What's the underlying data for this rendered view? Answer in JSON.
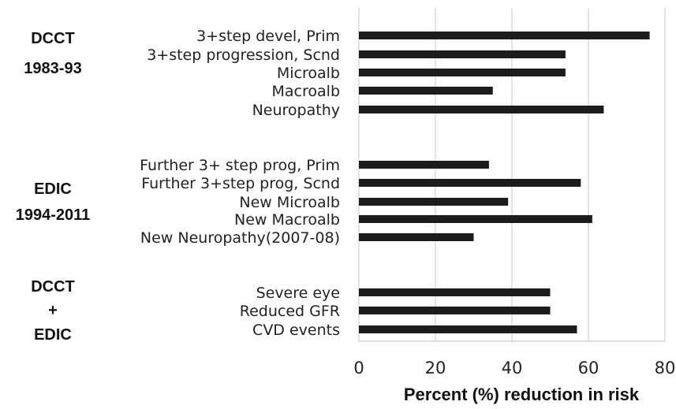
{
  "chart_data": {
    "type": "bar",
    "orientation": "horizontal",
    "xlabel": "Percent (%) reduction in risk",
    "xlim": [
      0,
      80
    ],
    "xticks": [
      "0",
      "20",
      "40",
      "60",
      "80"
    ],
    "grid": true,
    "groups": [
      {
        "label": [
          "DCCT",
          "1983-93"
        ],
        "categories": [
          "3+step devel, Prim",
          "3+step progression, Scnd",
          "Microalb",
          "Macroalb",
          "Neuropathy"
        ],
        "values": [
          76,
          54,
          54,
          35,
          64
        ]
      },
      {
        "label": [
          "EDIC",
          "1994-2011"
        ],
        "categories": [
          "Further 3+ step prog, Prim",
          "Further 3+step prog, Scnd",
          "New Microalb",
          "New Macroalb",
          "New Neuropathy(2007-08)"
        ],
        "values": [
          34,
          58,
          39,
          61,
          30
        ]
      },
      {
        "label": [
          "DCCT",
          "+",
          "EDIC"
        ],
        "categories": [
          "Severe eye",
          "Reduced GFR",
          "CVD events"
        ],
        "values": [
          50,
          50,
          57
        ]
      }
    ],
    "colors": {
      "bar": "#1c1c1c",
      "grid": "#c8c8c8"
    }
  }
}
